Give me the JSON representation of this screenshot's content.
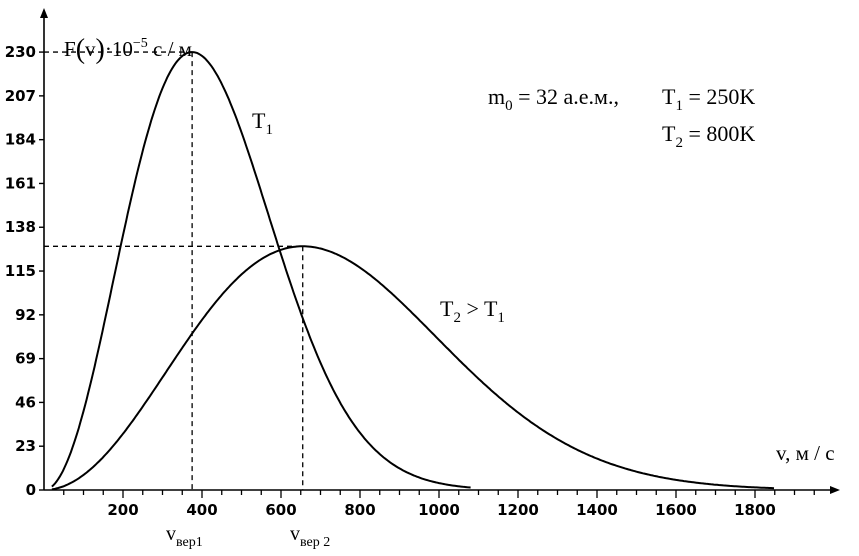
{
  "chart_data": {
    "type": "line",
    "ylabel": {
      "main": "F",
      "paren_open": "(",
      "var": "v",
      "paren_close": ")",
      "mult": "·10",
      "exp": "−5",
      "unit": " с / м"
    },
    "xlabel": "v, м / с",
    "x_ticks": [
      200,
      400,
      600,
      800,
      1000,
      1200,
      1400,
      1600,
      1800
    ],
    "y_ticks": [
      0,
      23,
      46,
      69,
      92,
      115,
      138,
      161,
      184,
      207,
      230
    ],
    "xlim": [
      0,
      2000
    ],
    "ylim": [
      0,
      250
    ],
    "params": {
      "m0_base": "m",
      "m0_sub": "0",
      "m0_rest": " = 32 а.е.м.,",
      "t1_base": "T",
      "t1_sub": "1",
      "t1_rest": " = 250K",
      "t2_base": "T",
      "t2_sub": "2",
      "t2_rest": " = 800K"
    },
    "series": [
      {
        "name_base": "T",
        "name_sub": "1",
        "peak_x": 375,
        "peak_y": 230,
        "x_start": 20,
        "x_end": 1080
      },
      {
        "name_base": "T",
        "name_sub": "2",
        "name_suffix": " > T",
        "name_suffix_sub": "1",
        "peak_x": 655,
        "peak_y": 128,
        "x_start": 20,
        "x_end": 1850
      }
    ],
    "markers": [
      {
        "x": 375,
        "y": 230,
        "label_base": "v",
        "label_sub": "вер1"
      },
      {
        "x": 655,
        "y": 128,
        "label_base": "v",
        "label_sub": "вер 2"
      }
    ]
  }
}
